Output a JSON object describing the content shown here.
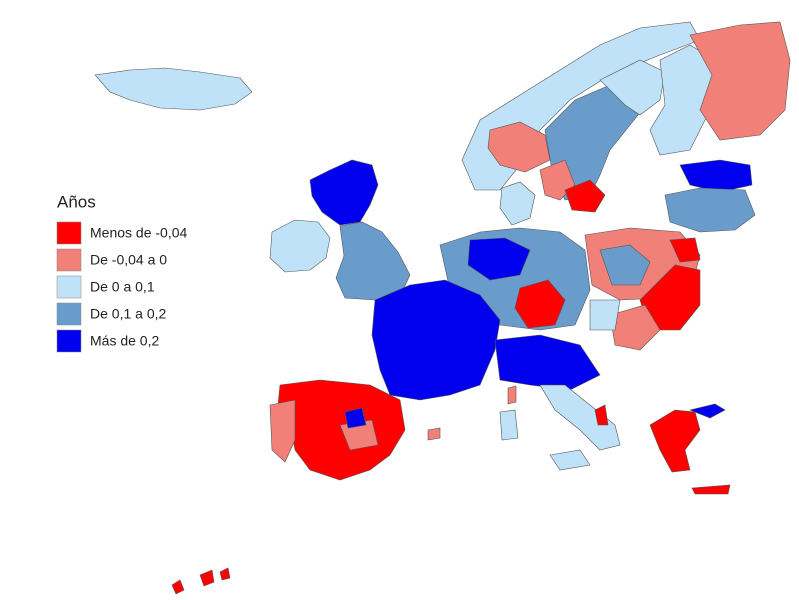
{
  "legend": {
    "title": "Años",
    "items": [
      {
        "label": "Menos de -0,04",
        "color": "#ff0000"
      },
      {
        "label": "De -0,04 a 0",
        "color": "#f08078"
      },
      {
        "label": "De 0 a 0,1",
        "color": "#bfe2f8"
      },
      {
        "label": "De 0,1 a 0,2",
        "color": "#6a9ccb"
      },
      {
        "label": "Más de 0,2",
        "color": "#0000ee"
      }
    ]
  }
}
